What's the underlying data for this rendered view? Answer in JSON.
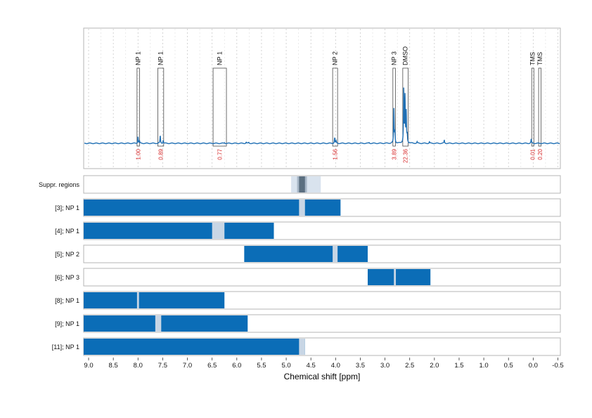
{
  "chart_data": [
    {
      "type": "line",
      "title": "",
      "xlabel": "Chemical shift [ppm]",
      "ylabel": "",
      "xlim": [
        9.1,
        -0.55
      ],
      "x_reversed": true,
      "xticks": [
        "9.0",
        "8.5",
        "8.0",
        "7.5",
        "7.0",
        "6.5",
        "6.0",
        "5.5",
        "5.0",
        "4.5",
        "4.0",
        "3.5",
        "3.0",
        "2.5",
        "2.0",
        "1.5",
        "1.0",
        "0.5",
        "0.0",
        "-0.5"
      ],
      "grid": true,
      "colors": {
        "spectrum": "#1f6fb4",
        "region_box": "#333333",
        "integral_text": "#d62728"
      },
      "peaks": [
        {
          "x": 8.0,
          "height": 0.09
        },
        {
          "x": 7.97,
          "height": 0.03
        },
        {
          "x": 7.55,
          "height": 0.1
        },
        {
          "x": 7.49,
          "height": 0.04
        },
        {
          "x": 6.25,
          "height": 0.01
        },
        {
          "x": 5.81,
          "height": 0.015
        },
        {
          "x": 5.76,
          "height": 0.01
        },
        {
          "x": 4.02,
          "height": 0.075
        },
        {
          "x": 3.99,
          "height": 0.03
        },
        {
          "x": 3.32,
          "height": 0.01
        },
        {
          "x": 2.82,
          "height": 0.45
        },
        {
          "x": 2.8,
          "height": 0.15
        },
        {
          "x": 2.62,
          "height": 0.7
        },
        {
          "x": 2.595,
          "height": 0.6
        },
        {
          "x": 2.57,
          "height": 0.4
        },
        {
          "x": 2.55,
          "height": 0.1
        },
        {
          "x": 2.35,
          "height": 0.02
        },
        {
          "x": 2.1,
          "height": 0.02
        },
        {
          "x": 1.8,
          "height": 0.04
        },
        {
          "x": 0.04,
          "height": 0.055
        }
      ],
      "regions": [
        {
          "label": "NP 1",
          "x_from": 8.02,
          "x_to": 7.97,
          "integral": "1.00"
        },
        {
          "label": "NP 1",
          "x_from": 7.6,
          "x_to": 7.48,
          "integral": "0.89"
        },
        {
          "label": "NP 1",
          "x_from": 6.48,
          "x_to": 6.21,
          "integral": "0.77"
        },
        {
          "label": "NP 2",
          "x_from": 4.06,
          "x_to": 3.96,
          "integral": "1.56"
        },
        {
          "label": "NP 3",
          "x_from": 2.84,
          "x_to": 2.79,
          "integral": "3.89"
        },
        {
          "label": "DMSO",
          "x_from": 2.64,
          "x_to": 2.53,
          "integral": "22.36"
        },
        {
          "label": "TMS",
          "x_from": 0.03,
          "x_to": -0.01,
          "integral": "0.01"
        },
        {
          "label": "TMS",
          "x_from": -0.11,
          "x_to": -0.16,
          "integral": "0.20"
        }
      ]
    },
    {
      "type": "bar",
      "orientation": "horizontal-ranges",
      "xlim": [
        9.1,
        -0.55
      ],
      "colors": {
        "bar": "#0b6db7",
        "gap": "#c8d6e5",
        "suppr_outer": "#d9e3ee",
        "suppr_mid": "#a9b8c8",
        "suppr_inner": "#5b6f80"
      },
      "rows": [
        {
          "label": "Suppr. regions",
          "kind": "suppression",
          "outer": [
            4.9,
            4.3
          ],
          "mid": [
            4.78,
            4.58
          ],
          "inner": [
            4.74,
            4.62
          ]
        },
        {
          "label": "[3]; NP 1",
          "range": [
            9.1,
            3.9
          ],
          "gap": [
            4.74,
            4.62
          ]
        },
        {
          "label": "[4]; NP 1",
          "range": [
            9.1,
            5.25
          ],
          "gap": [
            6.5,
            6.25
          ]
        },
        {
          "label": "[5]; NP 2",
          "range": [
            5.85,
            3.35
          ],
          "gap": [
            4.06,
            3.96
          ]
        },
        {
          "label": "[6]; NP 3",
          "range": [
            3.35,
            2.08
          ],
          "gap": [
            2.82,
            2.78
          ]
        },
        {
          "label": "[8]; NP 1",
          "range": [
            9.1,
            6.25
          ],
          "gap": [
            8.02,
            7.98
          ]
        },
        {
          "label": "[9]; NP 1",
          "range": [
            9.1,
            5.78
          ],
          "gap": [
            7.65,
            7.53
          ]
        },
        {
          "label": "[11]; NP 1",
          "range": [
            9.1,
            4.62
          ],
          "gap": [
            4.74,
            4.62
          ]
        }
      ]
    }
  ]
}
